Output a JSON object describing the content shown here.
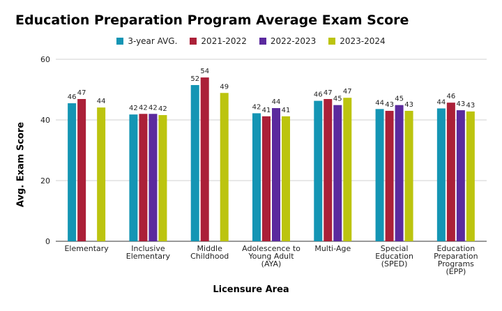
{
  "chart_data": {
    "type": "bar",
    "title": "Education Preparation Program Average Exam Score",
    "xlabel": "Licensure Area",
    "ylabel": "Avg. Exam Score",
    "ylim": [
      0,
      60
    ],
    "yticks": [
      0,
      20,
      40,
      60
    ],
    "legend_position": "top-center",
    "categories": [
      [
        "Elementary"
      ],
      [
        "Inclusive",
        "Elementary"
      ],
      [
        "Middle",
        "Childhood"
      ],
      [
        "Adolescence to",
        "Young Adult",
        "(AYA)"
      ],
      [
        "Multi-Age"
      ],
      [
        "Special",
        "Education",
        "(SPED)"
      ],
      [
        "Education",
        "Preparation",
        "Programs",
        "(EPP)"
      ]
    ],
    "series": [
      {
        "name": "3-year AVG.",
        "color": "#1495b4",
        "values": [
          45.5,
          41.8,
          51.5,
          42.2,
          46.3,
          43.6,
          43.8
        ],
        "labels": [
          "46",
          "42",
          "52",
          "42",
          "46",
          "44",
          "44"
        ]
      },
      {
        "name": "2021-2022",
        "color": "#ab2038",
        "values": [
          46.9,
          42.0,
          54.0,
          41.2,
          46.9,
          43.0,
          45.7
        ],
        "labels": [
          "47",
          "42",
          "54",
          "41",
          "47",
          "43",
          "46"
        ]
      },
      {
        "name": "2022-2023",
        "color": "#5b2a9e",
        "values": [
          null,
          42.0,
          null,
          43.9,
          44.9,
          44.9,
          43.2
        ],
        "labels": [
          "",
          "42",
          "",
          "44",
          "45",
          "45",
          "43"
        ]
      },
      {
        "name": "2023-2024",
        "color": "#bcc40f",
        "values": [
          44.1,
          41.6,
          48.9,
          41.2,
          47.3,
          43.0,
          42.8
        ],
        "labels": [
          "44",
          "42",
          "49",
          "41",
          "47",
          "43",
          "43"
        ]
      }
    ]
  }
}
